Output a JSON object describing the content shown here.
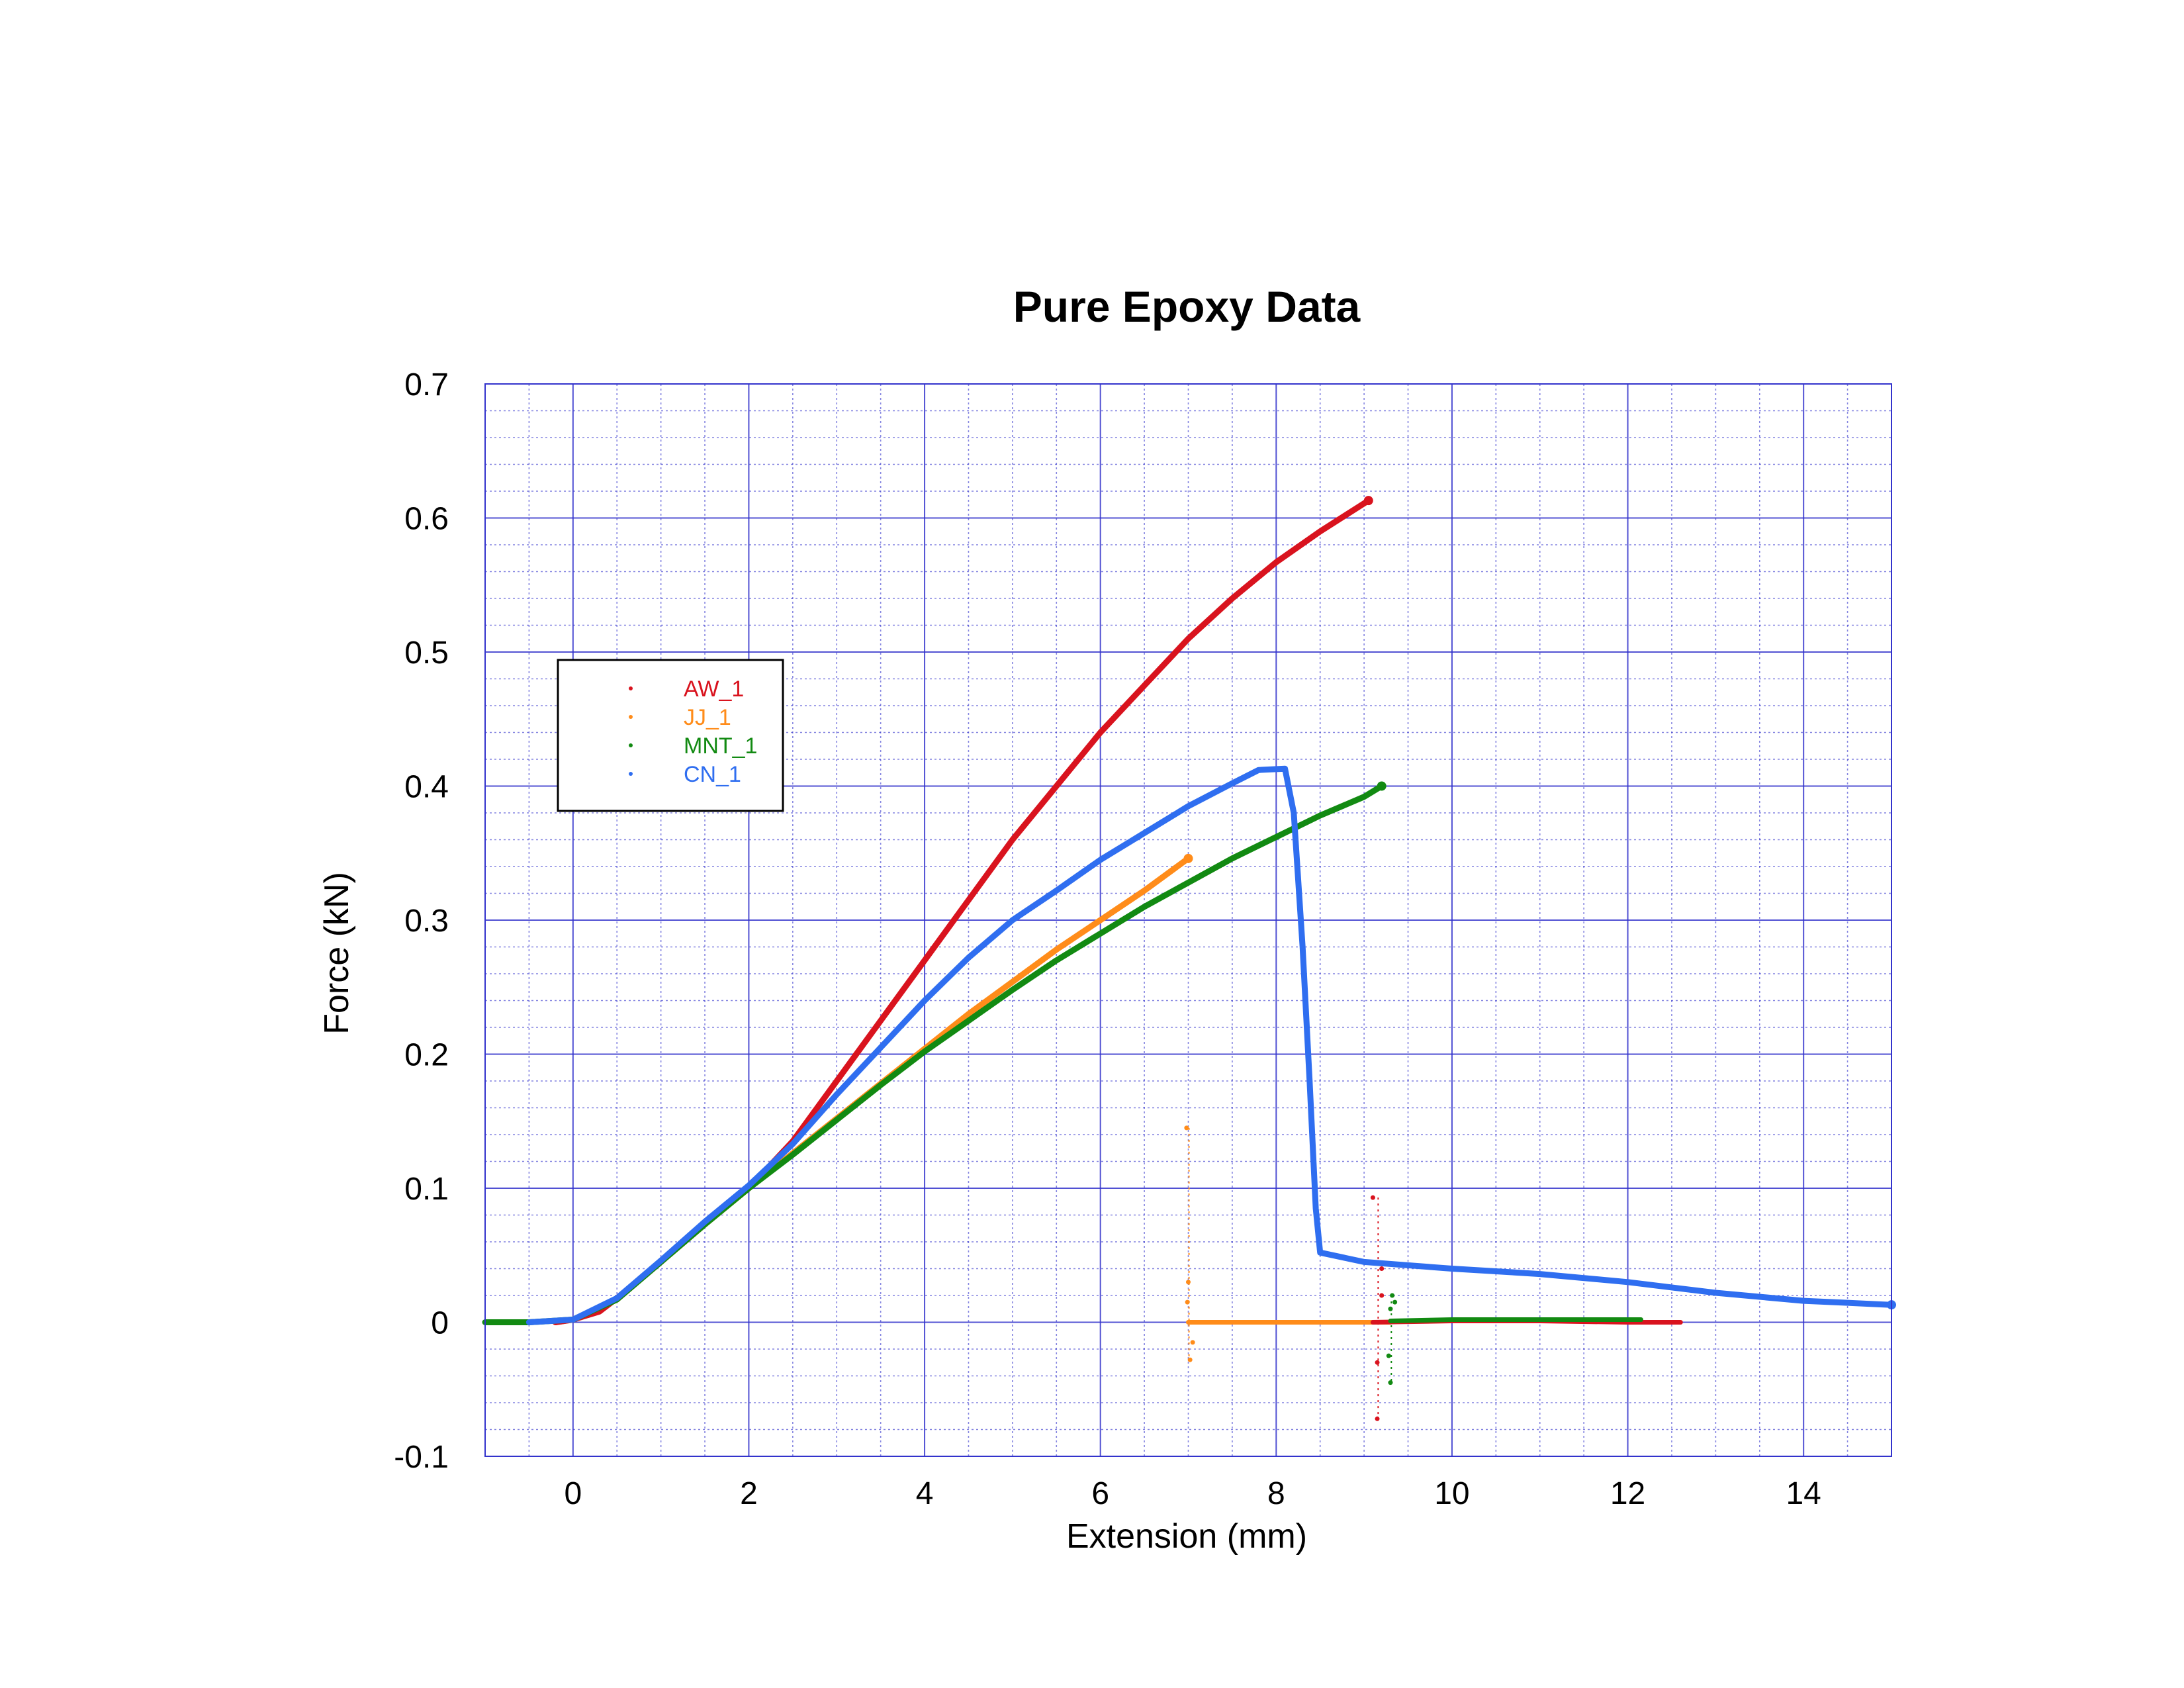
{
  "chart_data": {
    "type": "scatter",
    "title": "Pure Epoxy Data",
    "xlabel": "Extension (mm)",
    "ylabel": "Force (kN)",
    "xlim": [
      -1,
      15
    ],
    "ylim": [
      -0.1,
      0.7
    ],
    "x_ticks": [
      0,
      2,
      4,
      6,
      8,
      10,
      12,
      14
    ],
    "x_tick_labels": [
      "0",
      "2",
      "4",
      "6",
      "8",
      "10",
      "12",
      "14"
    ],
    "y_ticks": [
      -0.1,
      0,
      0.1,
      0.2,
      0.3,
      0.4,
      0.5,
      0.6,
      0.7
    ],
    "y_tick_labels": [
      "-0.1",
      "0",
      "0.1",
      "0.2",
      "0.3",
      "0.4",
      "0.5",
      "0.6",
      "0.7"
    ],
    "grid": "major solid and minor dotted, blue",
    "legend_position": "left, upper-middle",
    "plot_background": "#ffffff",
    "grid_color": "#3333cc",
    "series": [
      {
        "name": "AW_1",
        "color": "#d9131e",
        "points": [
          [
            -0.2,
            0
          ],
          [
            0,
            0.002
          ],
          [
            0.3,
            0.008
          ],
          [
            0.5,
            0.018
          ],
          [
            1,
            0.045
          ],
          [
            1.5,
            0.074
          ],
          [
            2,
            0.1
          ],
          [
            2.5,
            0.135
          ],
          [
            3,
            0.18
          ],
          [
            3.5,
            0.225
          ],
          [
            4,
            0.27
          ],
          [
            4.5,
            0.315
          ],
          [
            5,
            0.36
          ],
          [
            5.5,
            0.4
          ],
          [
            6,
            0.44
          ],
          [
            6.5,
            0.475
          ],
          [
            7,
            0.51
          ],
          [
            7.5,
            0.54
          ],
          [
            8,
            0.567
          ],
          [
            8.5,
            0.59
          ],
          [
            9.05,
            0.613
          ]
        ],
        "after_break": [
          [
            9.1,
            0
          ],
          [
            10,
            0.001
          ],
          [
            11,
            0.001
          ],
          [
            12,
            0
          ],
          [
            12.6,
            0
          ]
        ],
        "scatter": [
          [
            9.1,
            0.093
          ],
          [
            9.15,
            -0.072
          ],
          [
            9.2,
            0.04
          ],
          [
            9.15,
            -0.03
          ],
          [
            9.2,
            0.02
          ]
        ]
      },
      {
        "name": "JJ_1",
        "color": "#ff8c1a",
        "points": [
          [
            -0.2,
            0
          ],
          [
            0,
            0.002
          ],
          [
            0.5,
            0.017
          ],
          [
            1,
            0.045
          ],
          [
            1.5,
            0.073
          ],
          [
            2,
            0.1
          ],
          [
            2.5,
            0.126
          ],
          [
            3,
            0.152
          ],
          [
            3.5,
            0.178
          ],
          [
            4,
            0.204
          ],
          [
            4.5,
            0.23
          ],
          [
            5,
            0.254
          ],
          [
            5.5,
            0.278
          ],
          [
            6,
            0.3
          ],
          [
            6.5,
            0.322
          ],
          [
            7,
            0.346
          ]
        ],
        "after_break": [
          [
            7,
            0
          ],
          [
            7.5,
            0
          ],
          [
            8,
            0
          ],
          [
            8.5,
            0
          ],
          [
            9,
            0
          ],
          [
            9.3,
            0
          ]
        ],
        "scatter": [
          [
            6.98,
            0.145
          ],
          [
            7.02,
            -0.028
          ],
          [
            7.0,
            0.03
          ],
          [
            7.05,
            -0.015
          ],
          [
            6.99,
            0.015
          ]
        ]
      },
      {
        "name": "MNT_1",
        "color": "#128a12",
        "points": [
          [
            -1,
            0
          ],
          [
            -0.5,
            0
          ],
          [
            0,
            0.002
          ],
          [
            0.5,
            0.017
          ],
          [
            1,
            0.045
          ],
          [
            1.5,
            0.073
          ],
          [
            2,
            0.1
          ],
          [
            2.5,
            0.125
          ],
          [
            3,
            0.151
          ],
          [
            3.5,
            0.177
          ],
          [
            4,
            0.202
          ],
          [
            4.5,
            0.225
          ],
          [
            5,
            0.248
          ],
          [
            5.5,
            0.27
          ],
          [
            6,
            0.29
          ],
          [
            6.5,
            0.31
          ],
          [
            7,
            0.328
          ],
          [
            7.5,
            0.346
          ],
          [
            8,
            0.362
          ],
          [
            8.5,
            0.378
          ],
          [
            9,
            0.392
          ],
          [
            9.2,
            0.4
          ]
        ],
        "after_break": [
          [
            9.3,
            0.001
          ],
          [
            10,
            0.002
          ],
          [
            11,
            0.002
          ],
          [
            12,
            0.002
          ],
          [
            12.15,
            0.002
          ]
        ],
        "scatter": [
          [
            9.3,
            -0.045
          ],
          [
            9.32,
            0.02
          ],
          [
            9.28,
            -0.025
          ],
          [
            9.35,
            0.015
          ],
          [
            9.3,
            0.01
          ]
        ]
      },
      {
        "name": "CN_1",
        "color": "#2f6ef0",
        "points": [
          [
            -0.5,
            0
          ],
          [
            0,
            0.002
          ],
          [
            0.5,
            0.018
          ],
          [
            1,
            0.046
          ],
          [
            1.5,
            0.075
          ],
          [
            2,
            0.102
          ],
          [
            2.5,
            0.133
          ],
          [
            3,
            0.17
          ],
          [
            3.5,
            0.205
          ],
          [
            4,
            0.24
          ],
          [
            4.5,
            0.272
          ],
          [
            5,
            0.3
          ],
          [
            5.5,
            0.322
          ],
          [
            6,
            0.345
          ],
          [
            6.5,
            0.365
          ],
          [
            7,
            0.385
          ],
          [
            7.5,
            0.402
          ],
          [
            7.8,
            0.412
          ],
          [
            8.1,
            0.413
          ],
          [
            8.2,
            0.38
          ],
          [
            8.3,
            0.28
          ],
          [
            8.38,
            0.18
          ],
          [
            8.45,
            0.085
          ],
          [
            8.5,
            0.052
          ],
          [
            9,
            0.045
          ],
          [
            10,
            0.04
          ],
          [
            11,
            0.036
          ],
          [
            12,
            0.03
          ],
          [
            13,
            0.022
          ],
          [
            14,
            0.016
          ],
          [
            15,
            0.013
          ]
        ],
        "after_break": [],
        "scatter": []
      }
    ]
  }
}
